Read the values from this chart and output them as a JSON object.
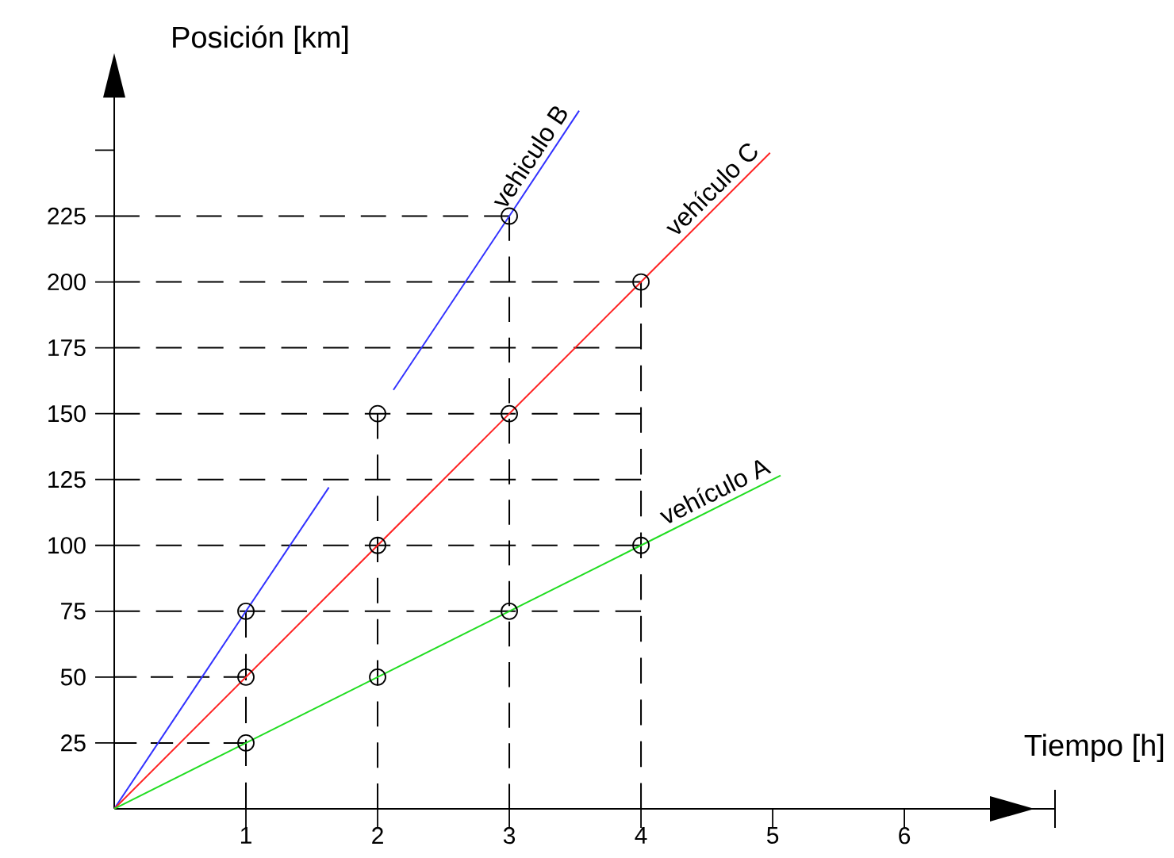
{
  "chart_data": {
    "type": "line",
    "xlabel": "Tiempo [h]",
    "ylabel": "Posición [km]",
    "xlim": [
      0,
      6.65
    ],
    "ylim": [
      0,
      270
    ],
    "xticks": [
      1,
      2,
      3,
      4,
      5,
      6
    ],
    "yticks": [
      25,
      50,
      75,
      100,
      125,
      150,
      175,
      200,
      225,
      {
        "value": 250,
        "label": null
      }
    ],
    "grid": false,
    "series": [
      {
        "x": [
          0,
          1
        ],
        "values": [
          25,
          25
        ],
        "color": "#000000",
        "line_style": "dashed",
        "marker": "none"
      },
      {
        "x": [
          0,
          1
        ],
        "values": [
          50,
          50
        ],
        "color": "#000000",
        "line_style": "dashed",
        "marker": "none"
      },
      {
        "x": [
          0,
          4
        ],
        "values": [
          75,
          75
        ],
        "color": "#000000",
        "line_style": "dashed",
        "marker": "none"
      },
      {
        "x": [
          0,
          4
        ],
        "values": [
          100,
          100
        ],
        "color": "#000000",
        "line_style": "dashed",
        "marker": "none"
      },
      {
        "x": [
          0,
          4
        ],
        "values": [
          125,
          125
        ],
        "color": "#000000",
        "line_style": "dashed",
        "marker": "none"
      },
      {
        "x": [
          0,
          4
        ],
        "values": [
          150,
          150
        ],
        "color": "#000000",
        "line_style": "dashed",
        "marker": "none"
      },
      {
        "x": [
          0,
          4
        ],
        "values": [
          175,
          175
        ],
        "color": "#000000",
        "line_style": "dashed",
        "marker": "none"
      },
      {
        "x": [
          0,
          4
        ],
        "values": [
          200,
          200
        ],
        "color": "#000000",
        "line_style": "dashed",
        "marker": "none"
      },
      {
        "x": [
          0,
          3
        ],
        "values": [
          225,
          225
        ],
        "color": "#000000",
        "line_style": "dashed",
        "marker": "none"
      },
      {
        "x": [
          1,
          1
        ],
        "values": [
          0,
          75
        ],
        "color": "#000000",
        "line_style": "dashed",
        "marker": "none"
      },
      {
        "x": [
          2,
          2
        ],
        "values": [
          0,
          150
        ],
        "color": "#000000",
        "line_style": "dashed",
        "marker": "none"
      },
      {
        "x": [
          3,
          3
        ],
        "values": [
          0,
          225
        ],
        "color": "#000000",
        "line_style": "dashed",
        "marker": "none"
      },
      {
        "x": [
          4,
          4
        ],
        "values": [
          0,
          200
        ],
        "color": "#000000",
        "line_style": "dashed",
        "marker": "none"
      },
      {
        "name": "vehiculo B",
        "x": [
          0,
          1,
          1.63,
          1.9,
          2.12,
          3,
          3.53
        ],
        "values": [
          0,
          75,
          122,
          null,
          159,
          225,
          265
        ],
        "color": "#3333ff",
        "line_style": "solid",
        "marker": "none"
      },
      {
        "name": "vehículo C",
        "x": [
          0,
          1,
          2,
          3,
          4,
          4.98
        ],
        "values": [
          0,
          50,
          100,
          150,
          200,
          249
        ],
        "color": "#ff2222",
        "line_style": "solid",
        "marker": "none"
      },
      {
        "name": "vehículo A",
        "x": [
          0,
          1,
          2,
          3,
          4,
          5.06
        ],
        "values": [
          0,
          25,
          50,
          75,
          100,
          126.5
        ],
        "color": "#22dd22",
        "line_style": "solid",
        "marker": "none"
      },
      {
        "type": "scatter",
        "x": [
          1,
          2,
          3,
          4,
          1,
          2,
          3,
          4,
          1,
          2,
          3
        ],
        "values": [
          25,
          50,
          75,
          100,
          50,
          100,
          150,
          200,
          75,
          150,
          225
        ],
        "color": "#000000",
        "marker": "circle"
      }
    ]
  }
}
